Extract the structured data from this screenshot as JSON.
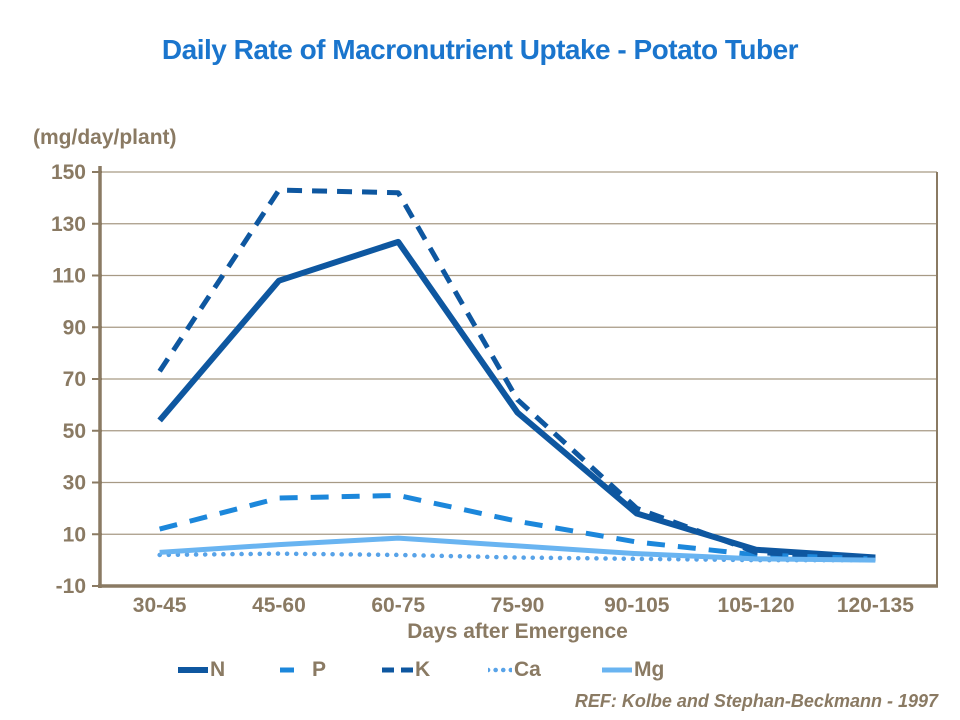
{
  "title": "Daily Rate of Macronutrient Uptake - Potato Tuber",
  "y_axis_unit_label": "(mg/day/plant)",
  "x_axis_label": "Days after Emergence",
  "ref_note": "REF: Kolbe and Stephan-Beckmann - 1997",
  "colors": {
    "title": "#1a75cd",
    "axis_text": "#8a7a63",
    "axis_line": "#8a7a63",
    "gridline": "#a79a85",
    "ref_text": "#8a7a63"
  },
  "chart_data": {
    "type": "line",
    "title": "Daily Rate of Macronutrient Uptake - Potato Tuber",
    "xlabel": "Days after Emergence",
    "ylabel": "(mg/day/plant)",
    "categories": [
      "30-45",
      "45-60",
      "60-75",
      "75-90",
      "90-105",
      "105-120",
      "120-135"
    ],
    "series": [
      {
        "name": "N",
        "color": "#0e57a0",
        "style": "solid",
        "width": 6,
        "dash": null,
        "values": [
          54,
          108,
          123,
          57,
          18,
          4,
          1
        ]
      },
      {
        "name": "P",
        "color": "#1c87db",
        "style": "dashed",
        "width": 5,
        "dash": [
          18,
          13
        ],
        "values": [
          12,
          24,
          25,
          15,
          7,
          2,
          0.5
        ]
      },
      {
        "name": "K",
        "color": "#0e57a0",
        "style": "dashed",
        "width": 5,
        "dash": [
          15,
          10
        ],
        "values": [
          73,
          143,
          142,
          62,
          20,
          3,
          0.5
        ]
      },
      {
        "name": "Ca",
        "color": "#58a3e8",
        "style": "dotted",
        "width": 4.5,
        "dash": [
          0.1,
          9
        ],
        "values": [
          2,
          2.5,
          2,
          1,
          0.5,
          0,
          0
        ]
      },
      {
        "name": "Mg",
        "color": "#69b4f1",
        "style": "solid",
        "width": 5,
        "dash": null,
        "values": [
          3,
          6,
          8.5,
          5.5,
          2.5,
          0.5,
          0
        ]
      }
    ],
    "ylim": [
      -10,
      150
    ],
    "yticks": [
      -10,
      10,
      30,
      50,
      70,
      90,
      110,
      130,
      150
    ],
    "grid": true,
    "legend_position": "bottom"
  }
}
